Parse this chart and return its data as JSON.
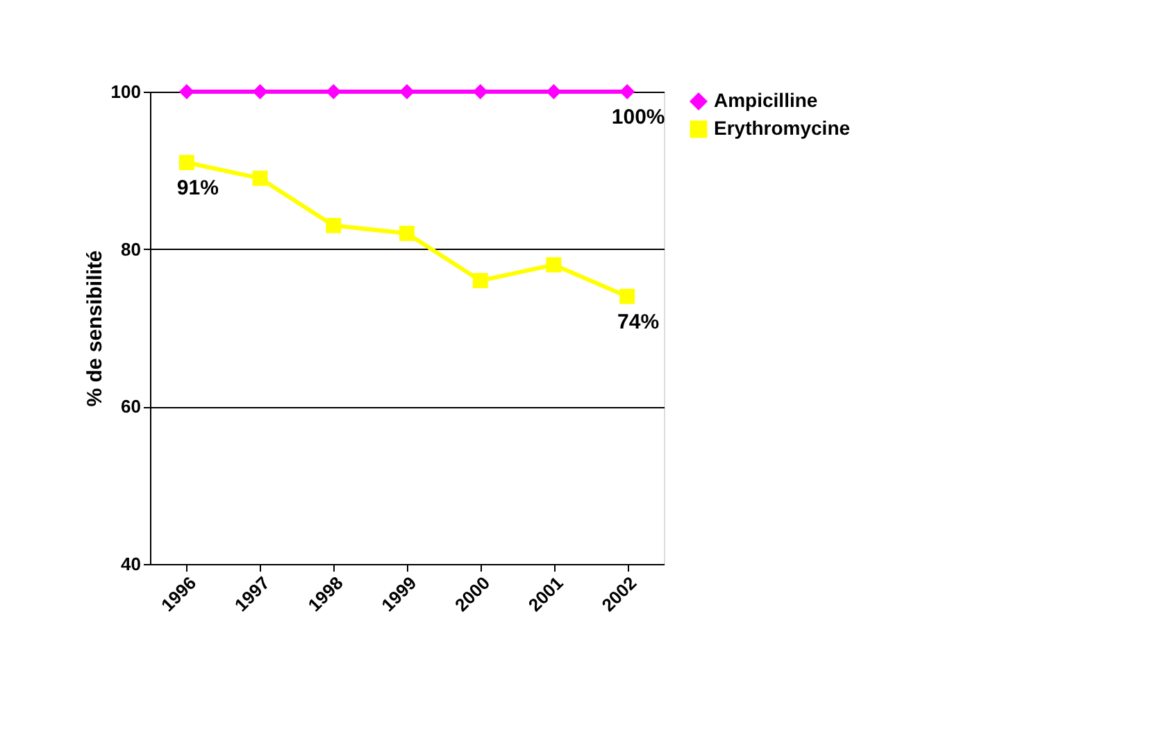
{
  "chart_data": {
    "type": "line",
    "ylabel": "% de sensibilité",
    "categories": [
      "1996",
      "1997",
      "1998",
      "1999",
      "2000",
      "2001",
      "2002"
    ],
    "series": [
      {
        "name": "Ampicilline",
        "color": "#ff00ff",
        "marker": "diamond",
        "values": [
          100,
          100,
          100,
          100,
          100,
          100,
          100
        ],
        "value_labels": [
          null,
          null,
          null,
          null,
          null,
          null,
          "100%"
        ]
      },
      {
        "name": "Erythromycine",
        "color": "#ffff00",
        "marker": "square",
        "values": [
          91,
          89,
          83,
          82,
          76,
          78,
          74
        ],
        "value_labels": [
          "91%",
          null,
          null,
          null,
          null,
          null,
          "74%"
        ]
      }
    ],
    "ylim": [
      40,
      100
    ],
    "yticks": [
      40,
      60,
      80,
      100
    ],
    "grid": "y",
    "legend": "right"
  }
}
